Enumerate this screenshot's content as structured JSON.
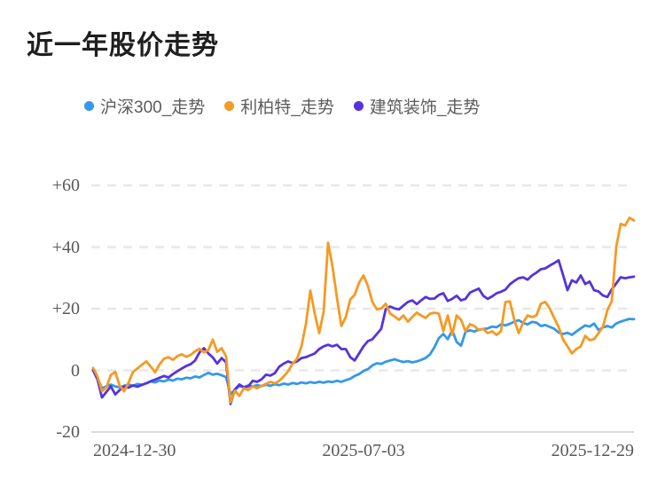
{
  "page": {
    "title": "近一年股价走势"
  },
  "colors": {
    "hs300_blue": "#3598ea",
    "libert_orange": "#f59a23",
    "decor_purple": "#5633dc",
    "title_text": "#1f1f1f",
    "tick_text": "#595959",
    "grid": "#e8e8e8"
  },
  "chart_data": {
    "type": "line",
    "title": "近一年股价走势",
    "xlabel": "",
    "ylabel": "",
    "grid": "horizontal dashed",
    "legend_position": "top",
    "ylim": [
      -20,
      60
    ],
    "x_tick_labels": [
      "2024-12-30",
      "2025-07-03",
      "2025-12-29"
    ],
    "y_ticks": [
      {
        "value": -20,
        "label": "-20"
      },
      {
        "value": 0,
        "label": "0"
      },
      {
        "value": 20,
        "label": "+20"
      },
      {
        "value": 40,
        "label": "+40"
      },
      {
        "value": 60,
        "label": "+60"
      }
    ],
    "series": [
      {
        "name": "沪深300_走势",
        "color": "#3598ea",
        "values": [
          0.3,
          -2.5,
          -5.8,
          -5.2,
          -4.6,
          -5.2,
          -5.5,
          -5,
          -4.6,
          -5,
          -4.4,
          -4.7,
          -4.2,
          -3.6,
          -3.9,
          -3.3,
          -3.6,
          -3,
          -3.3,
          -2.7,
          -2.9,
          -2.4,
          -2.6,
          -2,
          -2.3,
          -1.5,
          -0.8,
          -1.4,
          -1.1,
          -1.6,
          -2.2,
          -7.8,
          -6.2,
          -5.1,
          -5.4,
          -4.9,
          -5.2,
          -4.8,
          -5.1,
          -4.7,
          -5,
          -4.5,
          -4.8,
          -4.3,
          -4.6,
          -4.1,
          -4.4,
          -3.9,
          -4.2,
          -3.8,
          -4.1,
          -3.7,
          -4,
          -3.6,
          -3.8,
          -3.4,
          -3.7,
          -3.2,
          -2.7,
          -1.8,
          -1.2,
          -0.2,
          0.4,
          1.6,
          2.3,
          2.1,
          2.8,
          3.2,
          3.6,
          3.1,
          2.7,
          3,
          2.6,
          2.9,
          3.4,
          4,
          5.2,
          7.5,
          10.5,
          11.8,
          10.1,
          13,
          9.2,
          8,
          12.5,
          13,
          12.6,
          13.2,
          13.4,
          13.6,
          14.2,
          14,
          14.9,
          14.6,
          15.1,
          15.8,
          16.3,
          15.4,
          14.9,
          15.7,
          15.5,
          14.4,
          14.7,
          14.1,
          13.5,
          12.3,
          11.8,
          12.2,
          11.5,
          12.6,
          13.6,
          14.6,
          14.2,
          15.2,
          13.1,
          13.9,
          14.4,
          13.9,
          15.2,
          15.8,
          16.3,
          16.7,
          16.6
        ]
      },
      {
        "name": "利柏特_走势",
        "color": "#f59a23",
        "values": [
          0.8,
          -2,
          -6.8,
          -5.5,
          -1.5,
          -0.5,
          -5,
          -6.8,
          -4,
          -0.5,
          0.6,
          1.8,
          2.9,
          1.2,
          -0.6,
          2,
          3.8,
          4.3,
          3.4,
          4.6,
          5.2,
          4.4,
          5,
          6.2,
          7,
          5.8,
          6.6,
          10,
          6,
          7.2,
          4.5,
          -10.4,
          -6.6,
          -8.3,
          -5.8,
          -6.4,
          -5.2,
          -5.8,
          -5,
          -4.4,
          -3.7,
          -4.2,
          -3.4,
          -2,
          -0.3,
          2.2,
          3.8,
          7.8,
          15,
          25.9,
          18.4,
          12.1,
          19,
          41.4,
          33.7,
          23.6,
          14.4,
          17.3,
          23,
          24.5,
          28.5,
          30.8,
          27.3,
          22.2,
          19.8,
          20.1,
          21.6,
          18.4,
          17.5,
          16.4,
          17.8,
          15.8,
          17.3,
          18.7,
          17.8,
          17,
          18.4,
          18.7,
          18.4,
          12.7,
          17.8,
          11.5,
          17.8,
          16.4,
          12.7,
          15,
          14.4,
          13,
          13.5,
          12.1,
          12.7,
          11.5,
          12.7,
          22.2,
          22.4,
          16.4,
          12.1,
          15.5,
          17.8,
          17.3,
          17.8,
          21.6,
          22.2,
          20.1,
          17,
          14.1,
          10,
          7.8,
          5.5,
          6.9,
          7.8,
          11.2,
          9.8,
          10.1,
          12.1,
          14.1,
          19.5,
          22.5,
          40,
          47.5,
          47,
          49.5,
          48.6
        ]
      },
      {
        "name": "建筑装饰_走势",
        "color": "#5633dc",
        "values": [
          0,
          -3,
          -8.8,
          -7,
          -5.2,
          -7.8,
          -6.4,
          -5.2,
          -5.6,
          -4.9,
          -5.3,
          -4.7,
          -4.2,
          -3.5,
          -3,
          -2.4,
          -1.8,
          -2.3,
          -1.2,
          -0.3,
          0.6,
          1.4,
          2,
          3.2,
          5.8,
          7.2,
          5.5,
          4.2,
          2.2,
          4,
          2.6,
          -10.9,
          -6.2,
          -4.6,
          -5.5,
          -5.2,
          -3.4,
          -3.7,
          -2.9,
          -1.4,
          -1.7,
          -0.9,
          1.2,
          2.2,
          2.9,
          2.4,
          2.9,
          4,
          4.3,
          4.9,
          5.5,
          6.9,
          7.8,
          8.3,
          7.8,
          8.3,
          6.9,
          6.9,
          4.3,
          3.2,
          5.5,
          7.8,
          9.5,
          10.1,
          11.8,
          13.5,
          19.8,
          20.7,
          20.1,
          19.8,
          21,
          22.2,
          22.7,
          21.5,
          22.7,
          23.8,
          23.2,
          23.3,
          24.5,
          25,
          22.5,
          23.2,
          24.2,
          22.7,
          23.2,
          25.2,
          25.9,
          26.5,
          24.2,
          23.2,
          24,
          25,
          25.5,
          26.2,
          27.9,
          29,
          29.9,
          30.2,
          29.4,
          30.8,
          31.7,
          32.8,
          33.1,
          34,
          34.8,
          35.7,
          31,
          26,
          29.2,
          28.5,
          30.8,
          28,
          28.8,
          26,
          25.6,
          24.3,
          23.8,
          26.3,
          28.2,
          30.2,
          29.9,
          30.2,
          30.4
        ]
      }
    ]
  }
}
